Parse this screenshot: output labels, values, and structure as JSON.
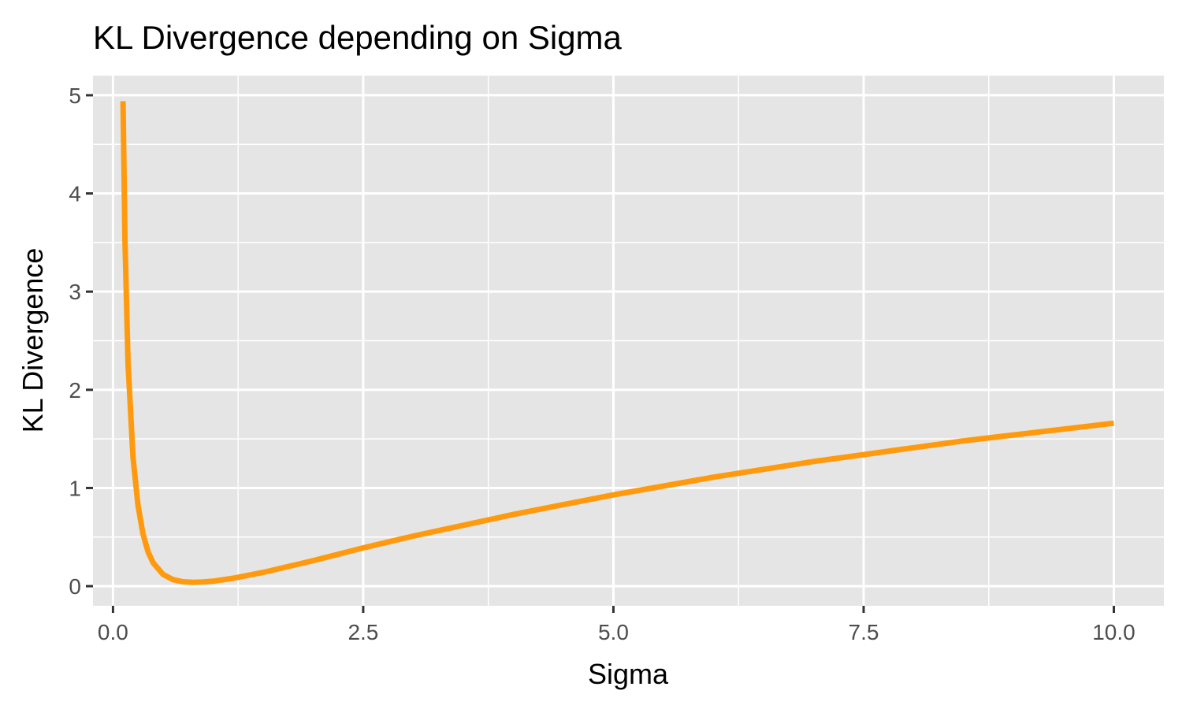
{
  "chart_data": {
    "type": "line",
    "title": "KL Divergence depending on Sigma",
    "xlabel": "Sigma",
    "ylabel": "KL Divergence",
    "xlim": [
      -0.2,
      10.5
    ],
    "ylim": [
      -0.2,
      5.2
    ],
    "x_ticks": [
      0.0,
      2.5,
      5.0,
      7.5,
      10.0
    ],
    "x_tick_labels": [
      "0.0",
      "2.5",
      "5.0",
      "7.5",
      "10.0"
    ],
    "y_ticks": [
      0,
      1,
      2,
      3,
      4,
      5
    ],
    "y_tick_labels": [
      "0",
      "1",
      "2",
      "3",
      "4",
      "5"
    ],
    "x_minor_ticks": [
      1.25,
      3.75,
      6.25,
      8.75
    ],
    "y_minor_ticks": [
      0.5,
      1.5,
      2.5,
      3.5,
      4.5
    ],
    "grid": true,
    "background_color": "#e5e5e5",
    "series": [
      {
        "color": "#ff9a0e",
        "x": [
          0.1,
          0.12,
          0.15,
          0.2,
          0.25,
          0.3,
          0.35,
          0.4,
          0.5,
          0.6,
          0.7,
          0.8,
          0.9,
          1.0,
          1.2,
          1.5,
          2.0,
          2.5,
          3.0,
          3.5,
          4.0,
          4.5,
          5.0,
          5.5,
          6.0,
          6.5,
          7.0,
          7.5,
          8.0,
          8.5,
          9.0,
          9.5,
          10.0
        ],
        "y": [
          4.94,
          3.52,
          2.27,
          1.31,
          0.82,
          0.53,
          0.35,
          0.24,
          0.12,
          0.066,
          0.045,
          0.039,
          0.042,
          0.05,
          0.081,
          0.14,
          0.26,
          0.39,
          0.51,
          0.62,
          0.73,
          0.83,
          0.93,
          1.02,
          1.11,
          1.19,
          1.27,
          1.34,
          1.41,
          1.48,
          1.54,
          1.6,
          1.66
        ]
      }
    ]
  }
}
